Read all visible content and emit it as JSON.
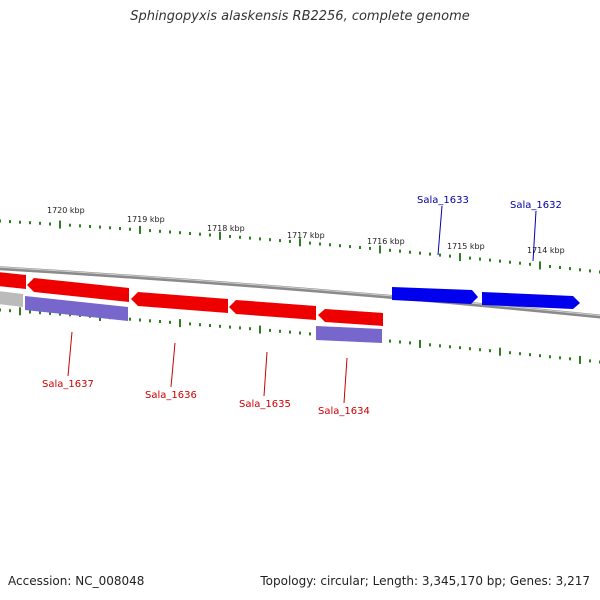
{
  "title": "Sphingopyxis alaskensis RB2256, complete genome",
  "accession_text": "Accession: NC_008048",
  "summary_text": "Topology: circular; Length: 3,345,170 bp; Genes: 3,217",
  "colors": {
    "backbone": "#8a8a8a",
    "tick": "#2e7d1f",
    "forward_gene": "#0000ee",
    "reverse_gene": "#ee0000",
    "forward_label": "#0000aa",
    "reverse_label": "#cc0000",
    "purple_feature": "#7766cc",
    "grey_feature": "#bbbbbb"
  },
  "scale_labels": [
    "1720 kbp",
    "1719 kbp",
    "1718 kbp",
    "1717 kbp",
    "1716 kbp",
    "1715 kbp",
    "1714 kbp"
  ],
  "gene_labels": [
    {
      "text": "Sala_1633",
      "strand": "forward"
    },
    {
      "text": "Sala_1632",
      "strand": "forward"
    },
    {
      "text": "Sala_1637",
      "strand": "reverse"
    },
    {
      "text": "Sala_1636",
      "strand": "reverse"
    },
    {
      "text": "Sala_1635",
      "strand": "reverse"
    },
    {
      "text": "Sala_1634",
      "strand": "reverse"
    }
  ]
}
